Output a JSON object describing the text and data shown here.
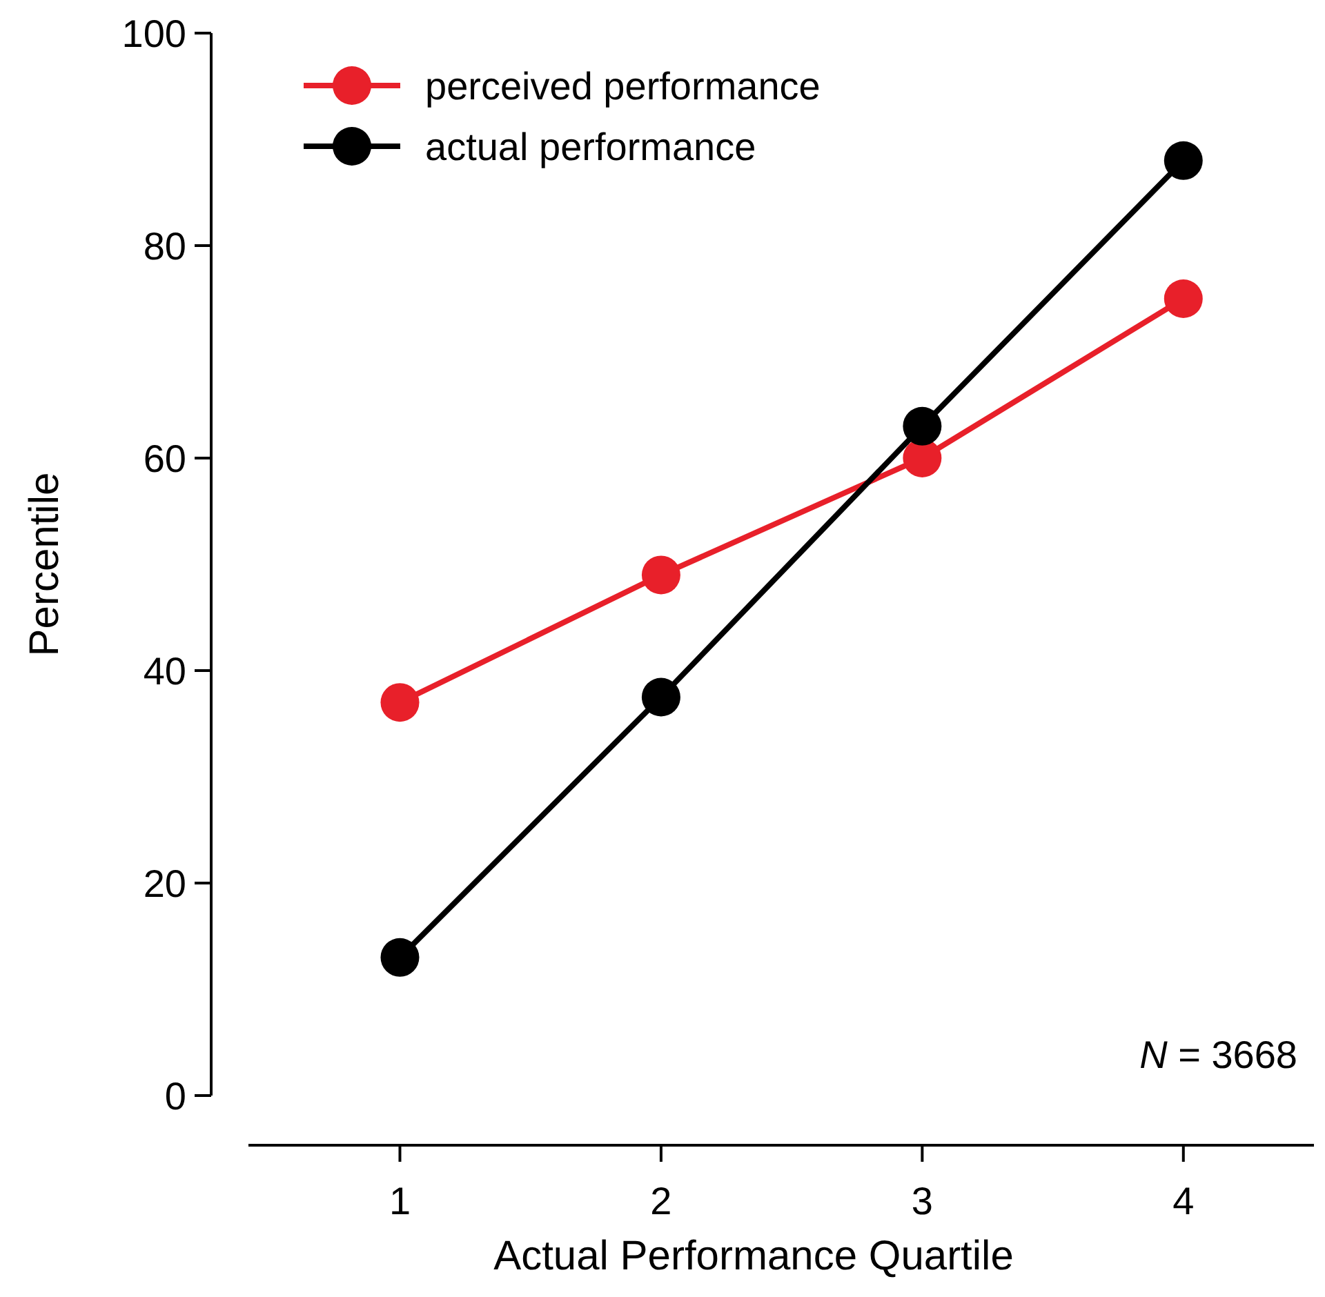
{
  "chart_data": {
    "type": "line",
    "xlabel": "Actual Performance Quartile",
    "ylabel": "Percentile",
    "x": [
      1,
      2,
      3,
      4
    ],
    "series": [
      {
        "name": "perceived performance",
        "color": "#e8202a",
        "values": [
          37,
          49,
          60,
          75
        ]
      },
      {
        "name": "actual performance",
        "color": "#000000",
        "values": [
          13,
          37.5,
          63,
          88
        ]
      }
    ],
    "xlim": [
      0.42,
      4.5
    ],
    "xticks": [
      1,
      2,
      3,
      4
    ],
    "ylim": [
      0,
      100
    ],
    "yticks": [
      0,
      20,
      40,
      60,
      80,
      100
    ],
    "grid": false,
    "legend": "top left",
    "marker": "circle",
    "line_style": "solid",
    "annotations": [
      "N = 3668"
    ]
  }
}
